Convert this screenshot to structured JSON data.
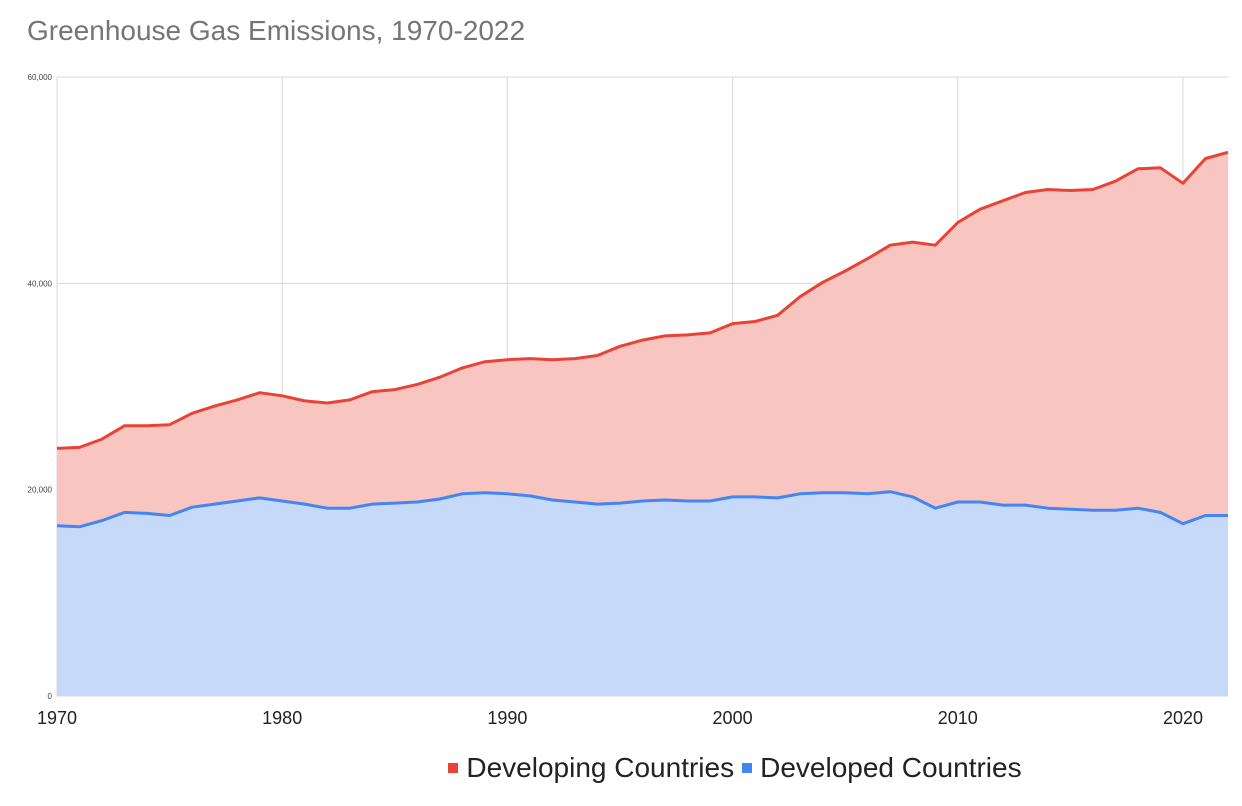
{
  "chart_data": {
    "type": "area",
    "title": "Greenhouse Gas Emissions, 1970-2022",
    "stacked": true,
    "x": [
      1970,
      1971,
      1972,
      1973,
      1974,
      1975,
      1976,
      1977,
      1978,
      1979,
      1980,
      1981,
      1982,
      1983,
      1984,
      1985,
      1986,
      1987,
      1988,
      1989,
      1990,
      1991,
      1992,
      1993,
      1994,
      1995,
      1996,
      1997,
      1998,
      1999,
      2000,
      2001,
      2002,
      2003,
      2004,
      2005,
      2006,
      2007,
      2008,
      2009,
      2010,
      2011,
      2012,
      2013,
      2014,
      2015,
      2016,
      2017,
      2018,
      2019,
      2020,
      2021,
      2022
    ],
    "x_ticks": [
      1970,
      1980,
      1990,
      2000,
      2010,
      2020
    ],
    "y_ticks": [
      0,
      20000,
      40000,
      60000
    ],
    "y_tick_labels": [
      "0",
      "20,000",
      "40,000",
      "60,000"
    ],
    "ylim": [
      0,
      60000
    ],
    "grid": true,
    "legend_position": "bottom",
    "series": [
      {
        "name": "Developed Countries",
        "color": "#4285f4",
        "fill": "#c6d9f9",
        "values": [
          16500,
          16400,
          17000,
          17800,
          17700,
          17500,
          18300,
          18600,
          18900,
          19200,
          18900,
          18600,
          18200,
          18200,
          18600,
          18700,
          18800,
          19100,
          19600,
          19700,
          19600,
          19400,
          19000,
          18800,
          18600,
          18700,
          18900,
          19000,
          18900,
          18900,
          19300,
          19300,
          19200,
          19600,
          19700,
          19700,
          19600,
          19800,
          19300,
          18200,
          18800,
          18800,
          18500,
          18500,
          18200,
          18100,
          18000,
          18000,
          18200,
          17800,
          16700,
          17500,
          17500
        ]
      },
      {
        "name": "Developing Countries",
        "color": "#ea4335",
        "fill": "#f8c5c1",
        "values": [
          7500,
          7700,
          7900,
          8400,
          8500,
          8800,
          9100,
          9500,
          9800,
          10200,
          10200,
          10000,
          10200,
          10500,
          10900,
          11000,
          11400,
          11800,
          12200,
          12700,
          13000,
          13300,
          13600,
          13900,
          14400,
          15200,
          15600,
          15900,
          16100,
          16300,
          16800,
          17000,
          17700,
          19100,
          20400,
          21500,
          22800,
          23900,
          24700,
          25500,
          27100,
          28400,
          29500,
          30300,
          30900,
          30900,
          31100,
          31900,
          32900,
          33400,
          33000,
          34600,
          35200
        ]
      }
    ],
    "legend_entries": [
      "Developing Countries",
      "Developed Countries"
    ]
  }
}
